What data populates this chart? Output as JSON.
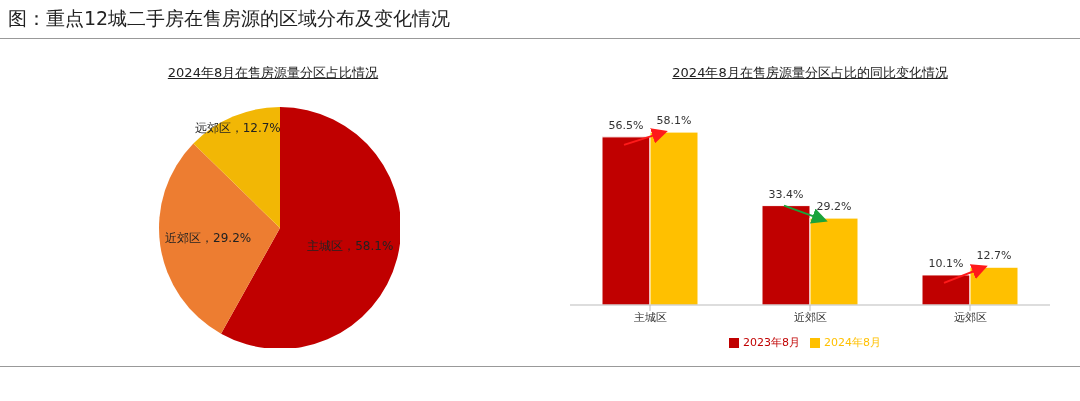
{
  "chart_data": [
    {
      "type": "pie",
      "title": "图：重点12城二手房在售房源的区域分布及变化情况",
      "subtitle": "2024年8月在售房源量分区占比情况",
      "categories": [
        "主城区",
        "近郊区",
        "远郊区"
      ],
      "values": [
        58.1,
        29.2,
        12.7
      ],
      "colors": [
        "#c00000",
        "#ed7d31",
        "#f2b705"
      ],
      "value_labels": [
        "，58.1%",
        "，29.2%",
        "，12.7%"
      ]
    },
    {
      "type": "bar",
      "title": "2024年8月在售房源量分区占比的同比变化情况",
      "categories": [
        "主城区",
        "近郊区",
        "远郊区"
      ],
      "legend": "bottom",
      "series": [
        {
          "name": "2023年8月",
          "color": "#c00000",
          "values": [
            56.5,
            33.4,
            10.1
          ],
          "value_labels": [
            "56.5%",
            "33.4%",
            "10.1%"
          ]
        },
        {
          "name": "2024年8月",
          "color": "#ffc000",
          "values": [
            58.1,
            29.2,
            12.7
          ],
          "value_labels": [
            "58.1%",
            "29.2%",
            "12.7%"
          ]
        }
      ]
    }
  ]
}
